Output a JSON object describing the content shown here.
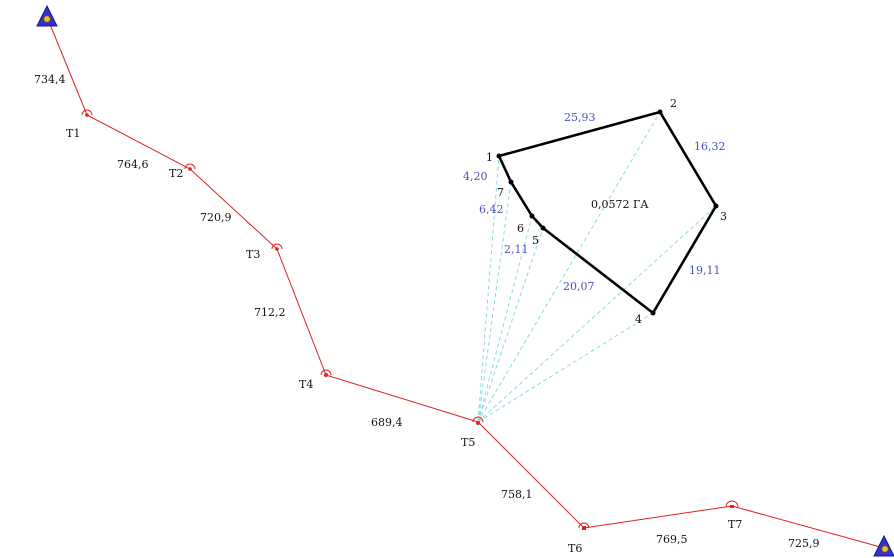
{
  "traverse": {
    "color": "#e02020",
    "stations": [
      {
        "id": "start",
        "label": ""
      },
      {
        "id": "T1",
        "label": "T1"
      },
      {
        "id": "T2",
        "label": "T2"
      },
      {
        "id": "T3",
        "label": "T3"
      },
      {
        "id": "T4",
        "label": "T4"
      },
      {
        "id": "T5",
        "label": "T5"
      },
      {
        "id": "T6",
        "label": "T6"
      },
      {
        "id": "T7",
        "label": "T7"
      },
      {
        "id": "end",
        "label": ""
      }
    ],
    "legs": [
      "734,4",
      "764,6",
      "720,9",
      "712,2",
      "689,4",
      "758,1",
      "769,5",
      "725,9"
    ]
  },
  "parcel": {
    "color": "#000000",
    "vertices": [
      "1",
      "2",
      "3",
      "4",
      "5",
      "6",
      "7"
    ],
    "side_lengths": [
      "25,93",
      "16,32",
      "19,11",
      "4,20",
      "6,42",
      "2,11",
      "20,07"
    ],
    "area_label": "0,0572 ГА"
  },
  "control_points": {
    "fill": "#3333cc",
    "dot": "#f0c020"
  },
  "rays": {
    "color": "#7fd6e0"
  }
}
